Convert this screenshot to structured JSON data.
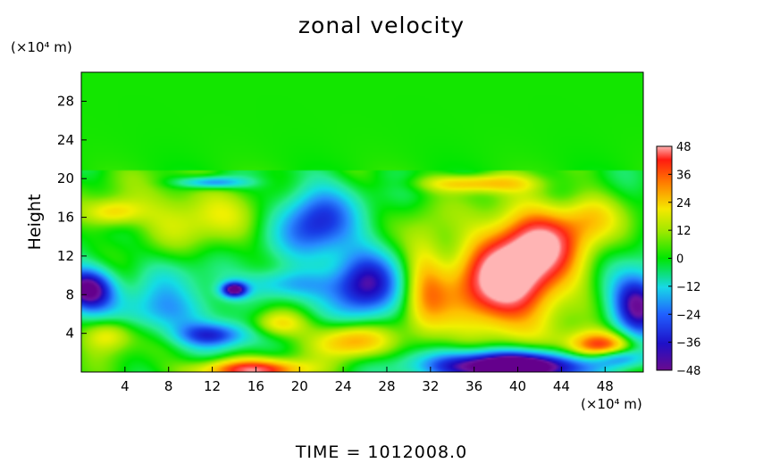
{
  "chart_data": {
    "type": "heatmap",
    "title": "zonal velocity",
    "ylabel": "Height",
    "x_unit": "(×10⁴ m)",
    "y_unit": "(×10⁴ m)",
    "xlim": [
      0,
      51.5
    ],
    "ylim": [
      0,
      31
    ],
    "x_ticks": [
      4,
      8,
      12,
      16,
      20,
      24,
      28,
      32,
      36,
      40,
      44,
      48
    ],
    "y_ticks": [
      4,
      8,
      12,
      16,
      20,
      24,
      28
    ],
    "colorbar": {
      "ticks": [
        48,
        36,
        24,
        12,
        0,
        -12,
        -24,
        -36,
        -48
      ],
      "range": [
        -48,
        48
      ]
    },
    "features": [
      {
        "x": 38,
        "y": 10,
        "value": 48
      },
      {
        "x": 39,
        "y": 1,
        "value": -50
      },
      {
        "x": 26,
        "y": 10,
        "value": -38
      },
      {
        "x": 21,
        "y": 15,
        "value": -34
      },
      {
        "x": 1,
        "y": 9,
        "value": -42
      },
      {
        "x": 50,
        "y": 7,
        "value": -42
      },
      {
        "x": 12,
        "y": 4,
        "value": -30
      },
      {
        "x": 15,
        "y": 0.5,
        "value": 38
      },
      {
        "x": 48,
        "y": 2.5,
        "value": 42
      },
      {
        "x": 10,
        "y": 17,
        "value": 18
      }
    ]
  },
  "footer": "TIME = 1012008.0"
}
